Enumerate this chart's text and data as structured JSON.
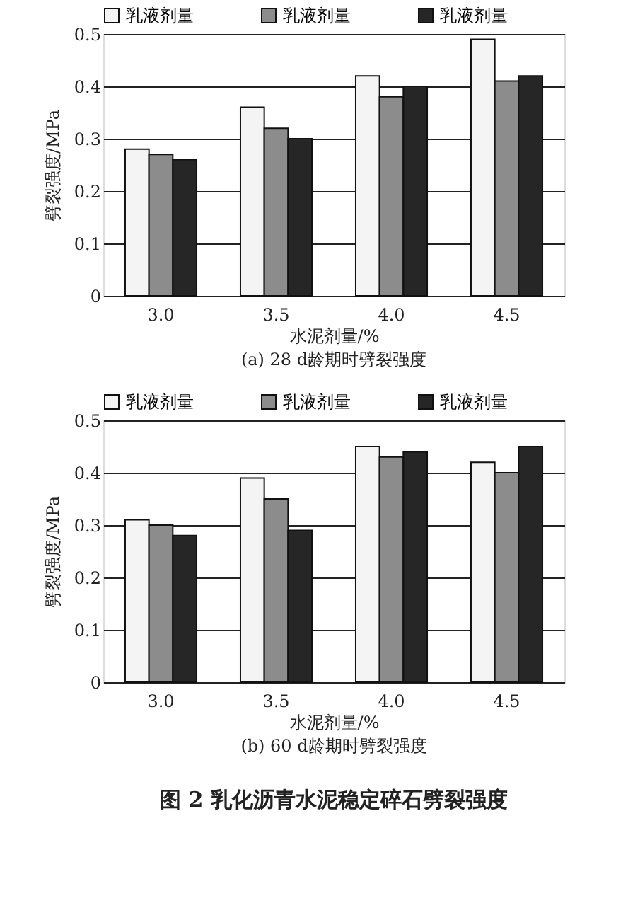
{
  "chart_data": [
    {
      "type": "bar",
      "title": "(a) 28 d龄期时劈裂强度",
      "xlabel": "水泥剂量/%",
      "ylabel": "劈裂强度/MPa",
      "categories": [
        "3.0",
        "3.5",
        "4.0",
        "4.5"
      ],
      "series": [
        {
          "name": "乳液剂量",
          "color": "#f4f4f4",
          "values": [
            0.28,
            0.36,
            0.42,
            0.49
          ]
        },
        {
          "name": "乳液剂量",
          "color": "#8c8c8c",
          "values": [
            0.27,
            0.32,
            0.38,
            0.41
          ]
        },
        {
          "name": "乳液剂量",
          "color": "#262626",
          "values": [
            0.26,
            0.3,
            0.4,
            0.42
          ]
        }
      ],
      "ylim": [
        0,
        0.5
      ],
      "yticks": [
        0,
        0.1,
        0.2,
        0.3,
        0.4,
        0.5
      ],
      "grid": "y",
      "legend": "top"
    },
    {
      "type": "bar",
      "title": "(b) 60 d龄期时劈裂强度",
      "xlabel": "水泥剂量/%",
      "ylabel": "劈裂强度/MPa",
      "categories": [
        "3.0",
        "3.5",
        "4.0",
        "4.5"
      ],
      "series": [
        {
          "name": "乳液剂量",
          "color": "#f4f4f4",
          "values": [
            0.31,
            0.39,
            0.45,
            0.42
          ]
        },
        {
          "name": "乳液剂量",
          "color": "#8c8c8c",
          "values": [
            0.3,
            0.35,
            0.43,
            0.4
          ]
        },
        {
          "name": "乳液剂量",
          "color": "#262626",
          "values": [
            0.28,
            0.29,
            0.44,
            0.45
          ]
        }
      ],
      "ylim": [
        0,
        0.5
      ],
      "yticks": [
        0,
        0.1,
        0.2,
        0.3,
        0.4,
        0.5
      ],
      "grid": "y",
      "legend": "top",
      "annotations": [
        "图 2  乳化沥青水泥稳定碎石劈裂强度"
      ]
    }
  ]
}
